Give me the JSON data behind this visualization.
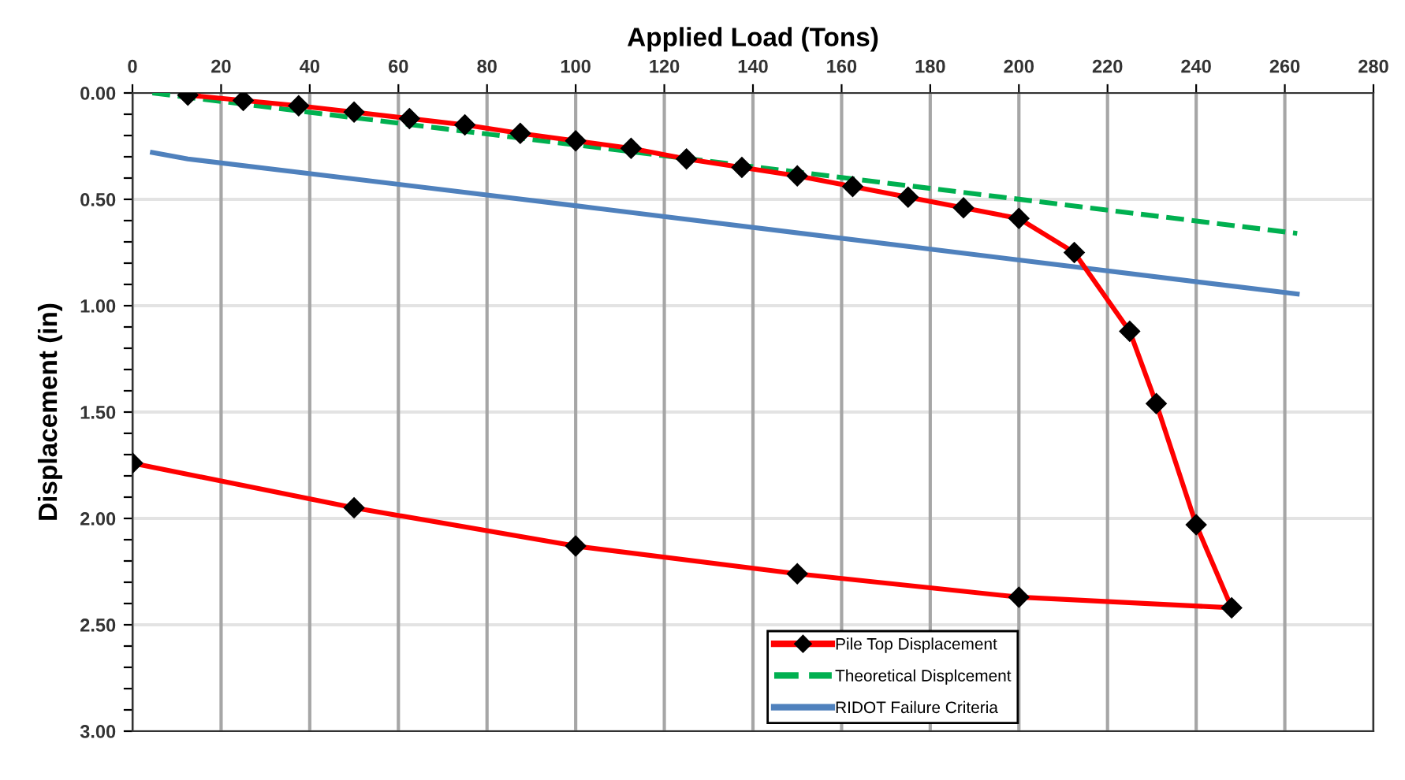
{
  "chart_data": {
    "type": "line",
    "xlabel": "Applied Load (Tons)",
    "ylabel": "Displacement (in)",
    "xlim": [
      0,
      280
    ],
    "xticks": [
      0,
      20,
      40,
      60,
      80,
      100,
      120,
      140,
      160,
      180,
      200,
      220,
      240,
      260,
      280
    ],
    "ylim": [
      3.0,
      0.0
    ],
    "yticks": [
      {
        "value": 0,
        "label": "0.00"
      },
      {
        "value": 0.1,
        "label": null
      },
      {
        "value": 0.2,
        "label": null
      },
      {
        "value": 0.3,
        "label": null
      },
      {
        "value": 0.4,
        "label": null
      },
      {
        "value": 0.5,
        "label": "0.50"
      },
      {
        "value": 0.6,
        "label": null
      },
      {
        "value": 0.7,
        "label": null
      },
      {
        "value": 0.8,
        "label": null
      },
      {
        "value": 0.9,
        "label": null
      },
      {
        "value": 1.0,
        "label": "1.00"
      },
      {
        "value": 1.1,
        "label": null
      },
      {
        "value": 1.2,
        "label": null
      },
      {
        "value": 1.3,
        "label": null
      },
      {
        "value": 1.4,
        "label": null
      },
      {
        "value": 1.5,
        "label": "1.50"
      },
      {
        "value": 1.6,
        "label": null
      },
      {
        "value": 1.7,
        "label": null
      },
      {
        "value": 1.8,
        "label": null
      },
      {
        "value": 1.9,
        "label": null
      },
      {
        "value": 2.0,
        "label": "2.00"
      },
      {
        "value": 2.1,
        "label": null
      },
      {
        "value": 2.2,
        "label": null
      },
      {
        "value": 2.3,
        "label": null
      },
      {
        "value": 2.4,
        "label": null
      },
      {
        "value": 2.5,
        "label": "2.50"
      },
      {
        "value": 2.6,
        "label": null
      },
      {
        "value": 2.7,
        "label": null
      },
      {
        "value": 2.8,
        "label": null
      },
      {
        "value": 2.9,
        "label": null
      },
      {
        "value": 3.0,
        "label": "3.00"
      }
    ],
    "grid": true,
    "legend": "bottom right",
    "series": [
      {
        "name": "Pile Top Displacement",
        "color": "#ff0000",
        "marker": "diamond",
        "line_style": "solid",
        "x": [
          12.5,
          25,
          37.5,
          50,
          62.5,
          75,
          87.5,
          100,
          112.5,
          125,
          137.5,
          150,
          162.5,
          175,
          187.5,
          200,
          212.5,
          225,
          231,
          240,
          248,
          200,
          150,
          100,
          50,
          0
        ],
        "values": [
          0.01,
          0.035,
          0.06,
          0.09,
          0.12,
          0.15,
          0.19,
          0.225,
          0.26,
          0.31,
          0.35,
          0.39,
          0.44,
          0.49,
          0.54,
          0.59,
          0.75,
          1.12,
          1.46,
          2.03,
          2.42,
          2.37,
          2.26,
          2.13,
          1.95,
          1.74
        ]
      },
      {
        "name": "Theoretical Displcement",
        "color": "#00b050",
        "marker": "none",
        "line_style": "dashed",
        "x": [
          4.5,
          262.8
        ],
        "values": [
          0.0,
          0.66
        ]
      },
      {
        "name": "RIDOT Failure Criteria",
        "color": "#4f81bd",
        "marker": "none",
        "line_style": "solid",
        "x": [
          4.5,
          12.5,
          100,
          200,
          262.8
        ],
        "values": [
          0.28,
          0.31,
          0.53,
          0.785,
          0.945
        ]
      }
    ]
  }
}
